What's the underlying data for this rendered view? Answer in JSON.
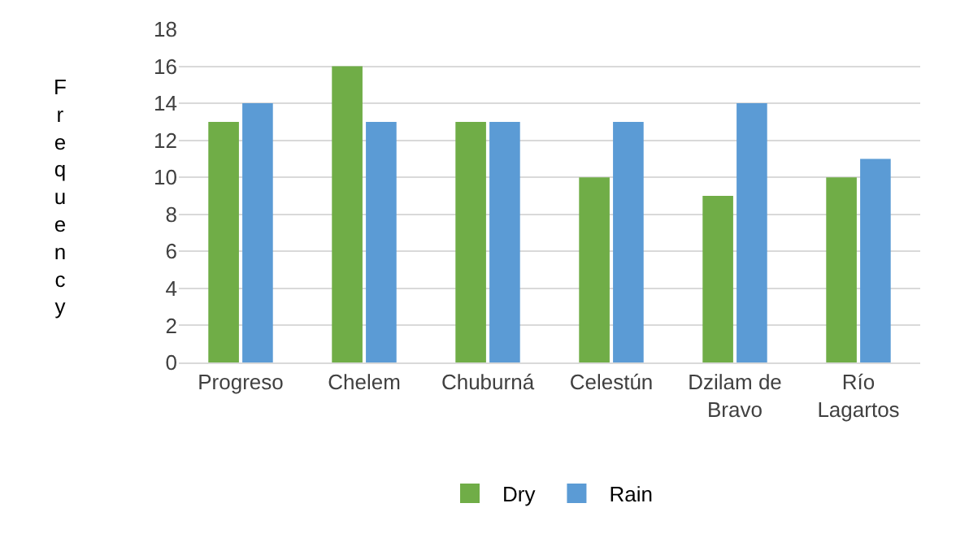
{
  "chart_data": {
    "type": "bar",
    "ylabel": "Frequency",
    "categories": [
      "Progreso",
      "Chelem",
      "Chuburná",
      "Celestún",
      "Dzilam de Bravo",
      "Río Lagartos"
    ],
    "series": [
      {
        "name": "Dry",
        "color": "#70ad47",
        "values": [
          13,
          16,
          13,
          10,
          9,
          10
        ]
      },
      {
        "name": "Rain",
        "color": "#5b9bd5",
        "values": [
          14,
          13,
          13,
          13,
          14,
          11
        ]
      }
    ],
    "ylim": [
      0,
      18
    ],
    "yticks": [
      0,
      2,
      4,
      6,
      8,
      10,
      12,
      14,
      16,
      18
    ],
    "grid": "y",
    "legend": "bottom"
  }
}
